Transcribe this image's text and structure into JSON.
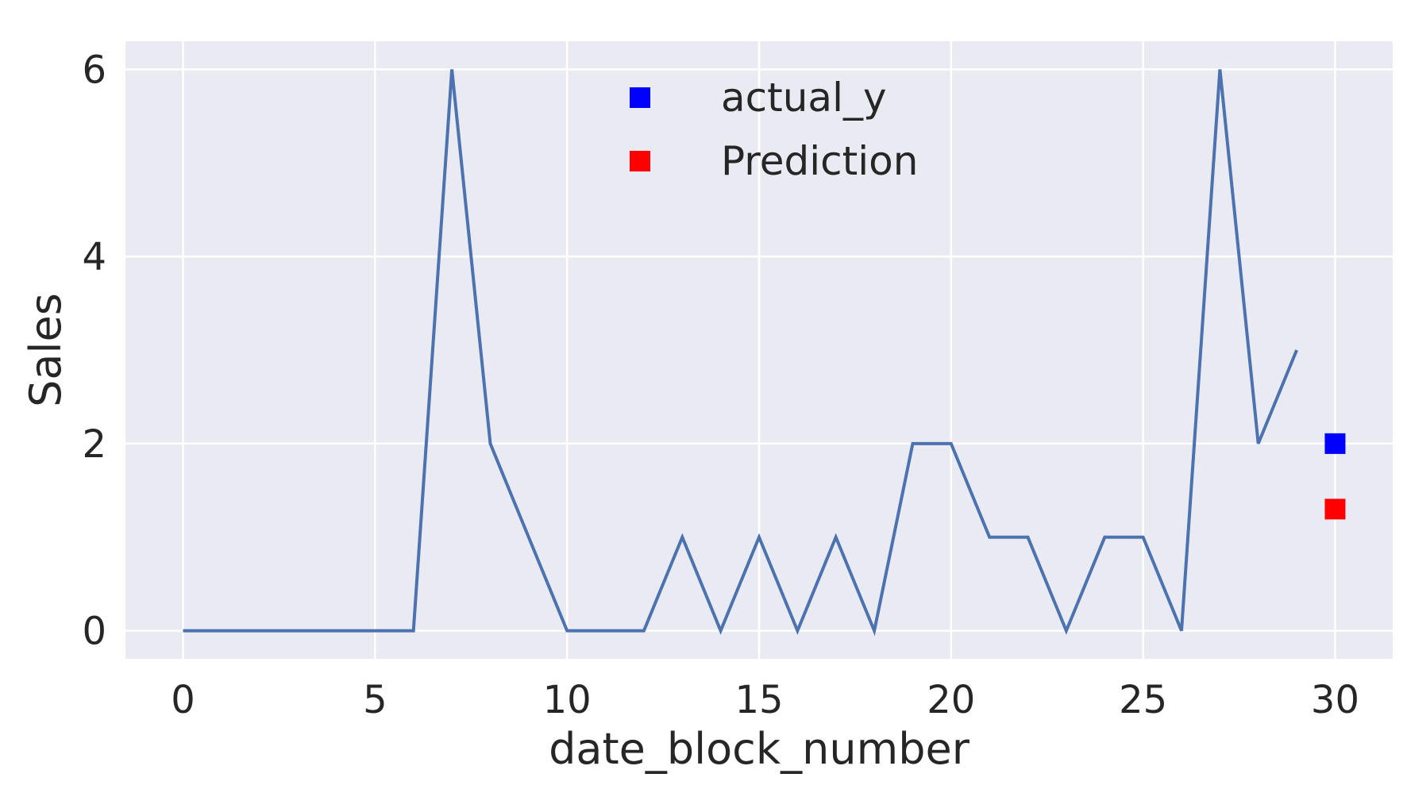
{
  "chart_data": {
    "type": "line",
    "title": "",
    "xlabel": "date_block_number",
    "ylabel": "Sales",
    "xlim": [
      -1.5,
      31.5
    ],
    "ylim": [
      -0.3,
      6.3
    ],
    "grid": true,
    "legend_placement": "upper-center",
    "x_ticks": [
      0,
      5,
      10,
      15,
      20,
      25,
      30
    ],
    "y_ticks": [
      0,
      2,
      4,
      6
    ],
    "series": [
      {
        "kind": "line",
        "color": "#4c72b0",
        "x": [
          0,
          1,
          2,
          3,
          4,
          5,
          6,
          7,
          8,
          9,
          10,
          11,
          12,
          13,
          14,
          15,
          16,
          17,
          18,
          19,
          20,
          21,
          22,
          23,
          24,
          25,
          26,
          27,
          28,
          29
        ],
        "values": [
          0,
          0,
          0,
          0,
          0,
          0,
          0,
          6,
          2,
          1,
          0,
          0,
          0,
          1,
          0,
          1,
          0,
          1,
          0,
          2,
          2,
          1,
          1,
          0,
          1,
          1,
          0,
          6,
          2,
          3
        ]
      },
      {
        "kind": "marker",
        "name": "actual_y",
        "color": "#0000ff",
        "x": [
          30
        ],
        "values": [
          2
        ]
      },
      {
        "kind": "marker",
        "name": "Prediction",
        "color": "#ff0000",
        "x": [
          30
        ],
        "values": [
          1.3
        ]
      }
    ]
  }
}
